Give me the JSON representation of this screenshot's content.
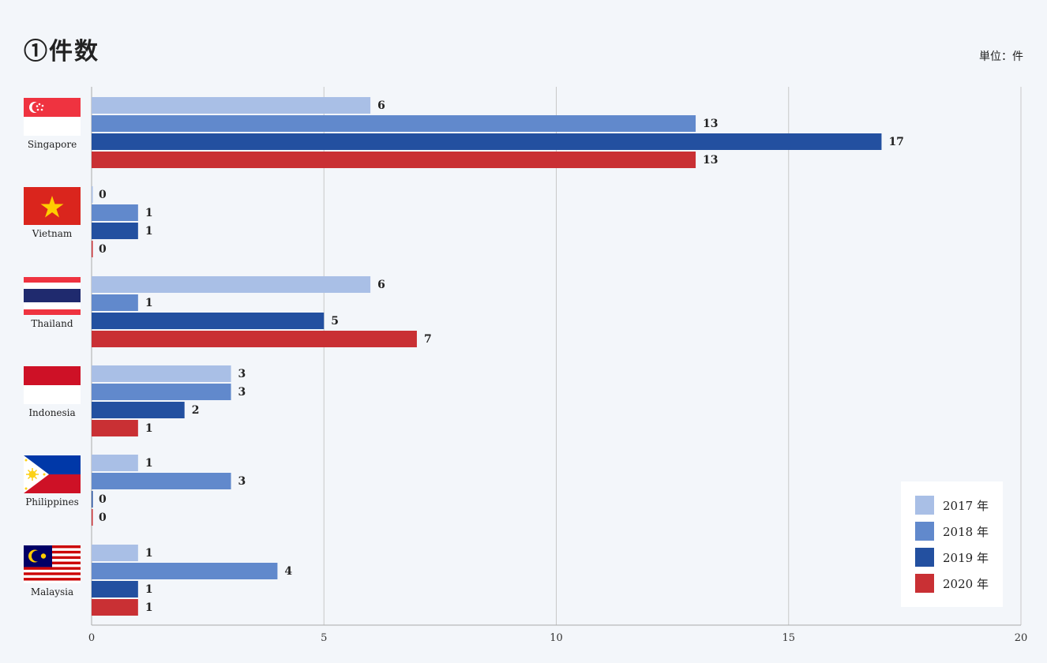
{
  "title": "①件数",
  "unit_label": "単位：件",
  "colors": {
    "2017": "#a9bfe6",
    "2018": "#6189cc",
    "2019": "#2350a0",
    "2020": "#c93034",
    "grid": "#c8c8c8",
    "axis": "#aaaaaa"
  },
  "chart_data": {
    "type": "bar",
    "orientation": "horizontal",
    "categories": [
      "Singapore",
      "Vietnam",
      "Thailand",
      "Indonesia",
      "Philippines",
      "Malaysia"
    ],
    "series": [
      {
        "name": "2017 年",
        "values": [
          6,
          0,
          6,
          3,
          1,
          1
        ]
      },
      {
        "name": "2018 年",
        "values": [
          13,
          1,
          1,
          3,
          3,
          4
        ]
      },
      {
        "name": "2019 年",
        "values": [
          17,
          1,
          5,
          2,
          0,
          1
        ]
      },
      {
        "name": "2020 年",
        "values": [
          13,
          0,
          7,
          1,
          0,
          1
        ]
      }
    ],
    "xlim": [
      0,
      20
    ],
    "x_ticks": [
      0,
      5,
      10,
      15,
      20
    ],
    "grid": true,
    "legend_position": "bottom-right",
    "data_labels": true
  },
  "flags": {
    "Singapore": "singapore-flag-icon",
    "Vietnam": "vietnam-flag-icon",
    "Thailand": "thailand-flag-icon",
    "Indonesia": "indonesia-flag-icon",
    "Philippines": "philippines-flag-icon",
    "Malaysia": "malaysia-flag-icon"
  }
}
